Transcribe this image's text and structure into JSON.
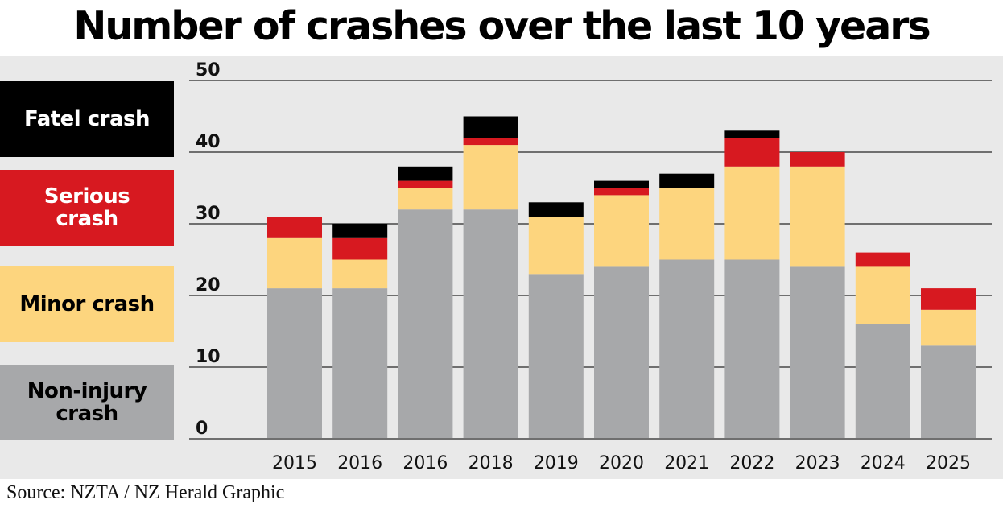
{
  "title": "Number of crashes over the last 10 years",
  "source": "Source: NZTA / NZ Herald Graphic",
  "legend": [
    {
      "label": "Fatel crash",
      "color": "#000000",
      "text_color": "#ffffff"
    },
    {
      "label": "Serious crash",
      "color": "#d71920",
      "text_color": "#ffffff"
    },
    {
      "label": "Minor crash",
      "color": "#fdd57e",
      "text_color": "#000000"
    },
    {
      "label": "Non-injury crash",
      "color": "#a7a8aa",
      "text_color": "#000000"
    }
  ],
  "chart_data": {
    "type": "bar",
    "stacked": true,
    "title": "Number of crashes over the last 10 years",
    "xlabel": "",
    "ylabel": "",
    "ylim": [
      0,
      50
    ],
    "yticks": [
      0,
      10,
      20,
      30,
      40,
      50
    ],
    "grid": true,
    "legend_position": "left",
    "categories": [
      "2015",
      "2016",
      "2016",
      "2018",
      "2019",
      "2020",
      "2021",
      "2022",
      "2023",
      "2024",
      "2025"
    ],
    "series": [
      {
        "name": "Non-injury crash",
        "color": "#a7a8aa",
        "values": [
          21,
          21,
          32,
          32,
          23,
          24,
          25,
          25,
          24,
          16,
          13
        ]
      },
      {
        "name": "Minor crash",
        "color": "#fdd57e",
        "values": [
          7,
          4,
          3,
          9,
          8,
          10,
          10,
          13,
          14,
          8,
          5
        ]
      },
      {
        "name": "Serious crash",
        "color": "#d71920",
        "values": [
          3,
          3,
          1,
          1,
          0,
          1,
          0,
          4,
          2,
          2,
          3
        ]
      },
      {
        "name": "Fatel crash",
        "color": "#000000",
        "values": [
          0,
          2,
          2,
          3,
          2,
          1,
          2,
          1,
          0,
          0,
          0
        ]
      }
    ]
  }
}
